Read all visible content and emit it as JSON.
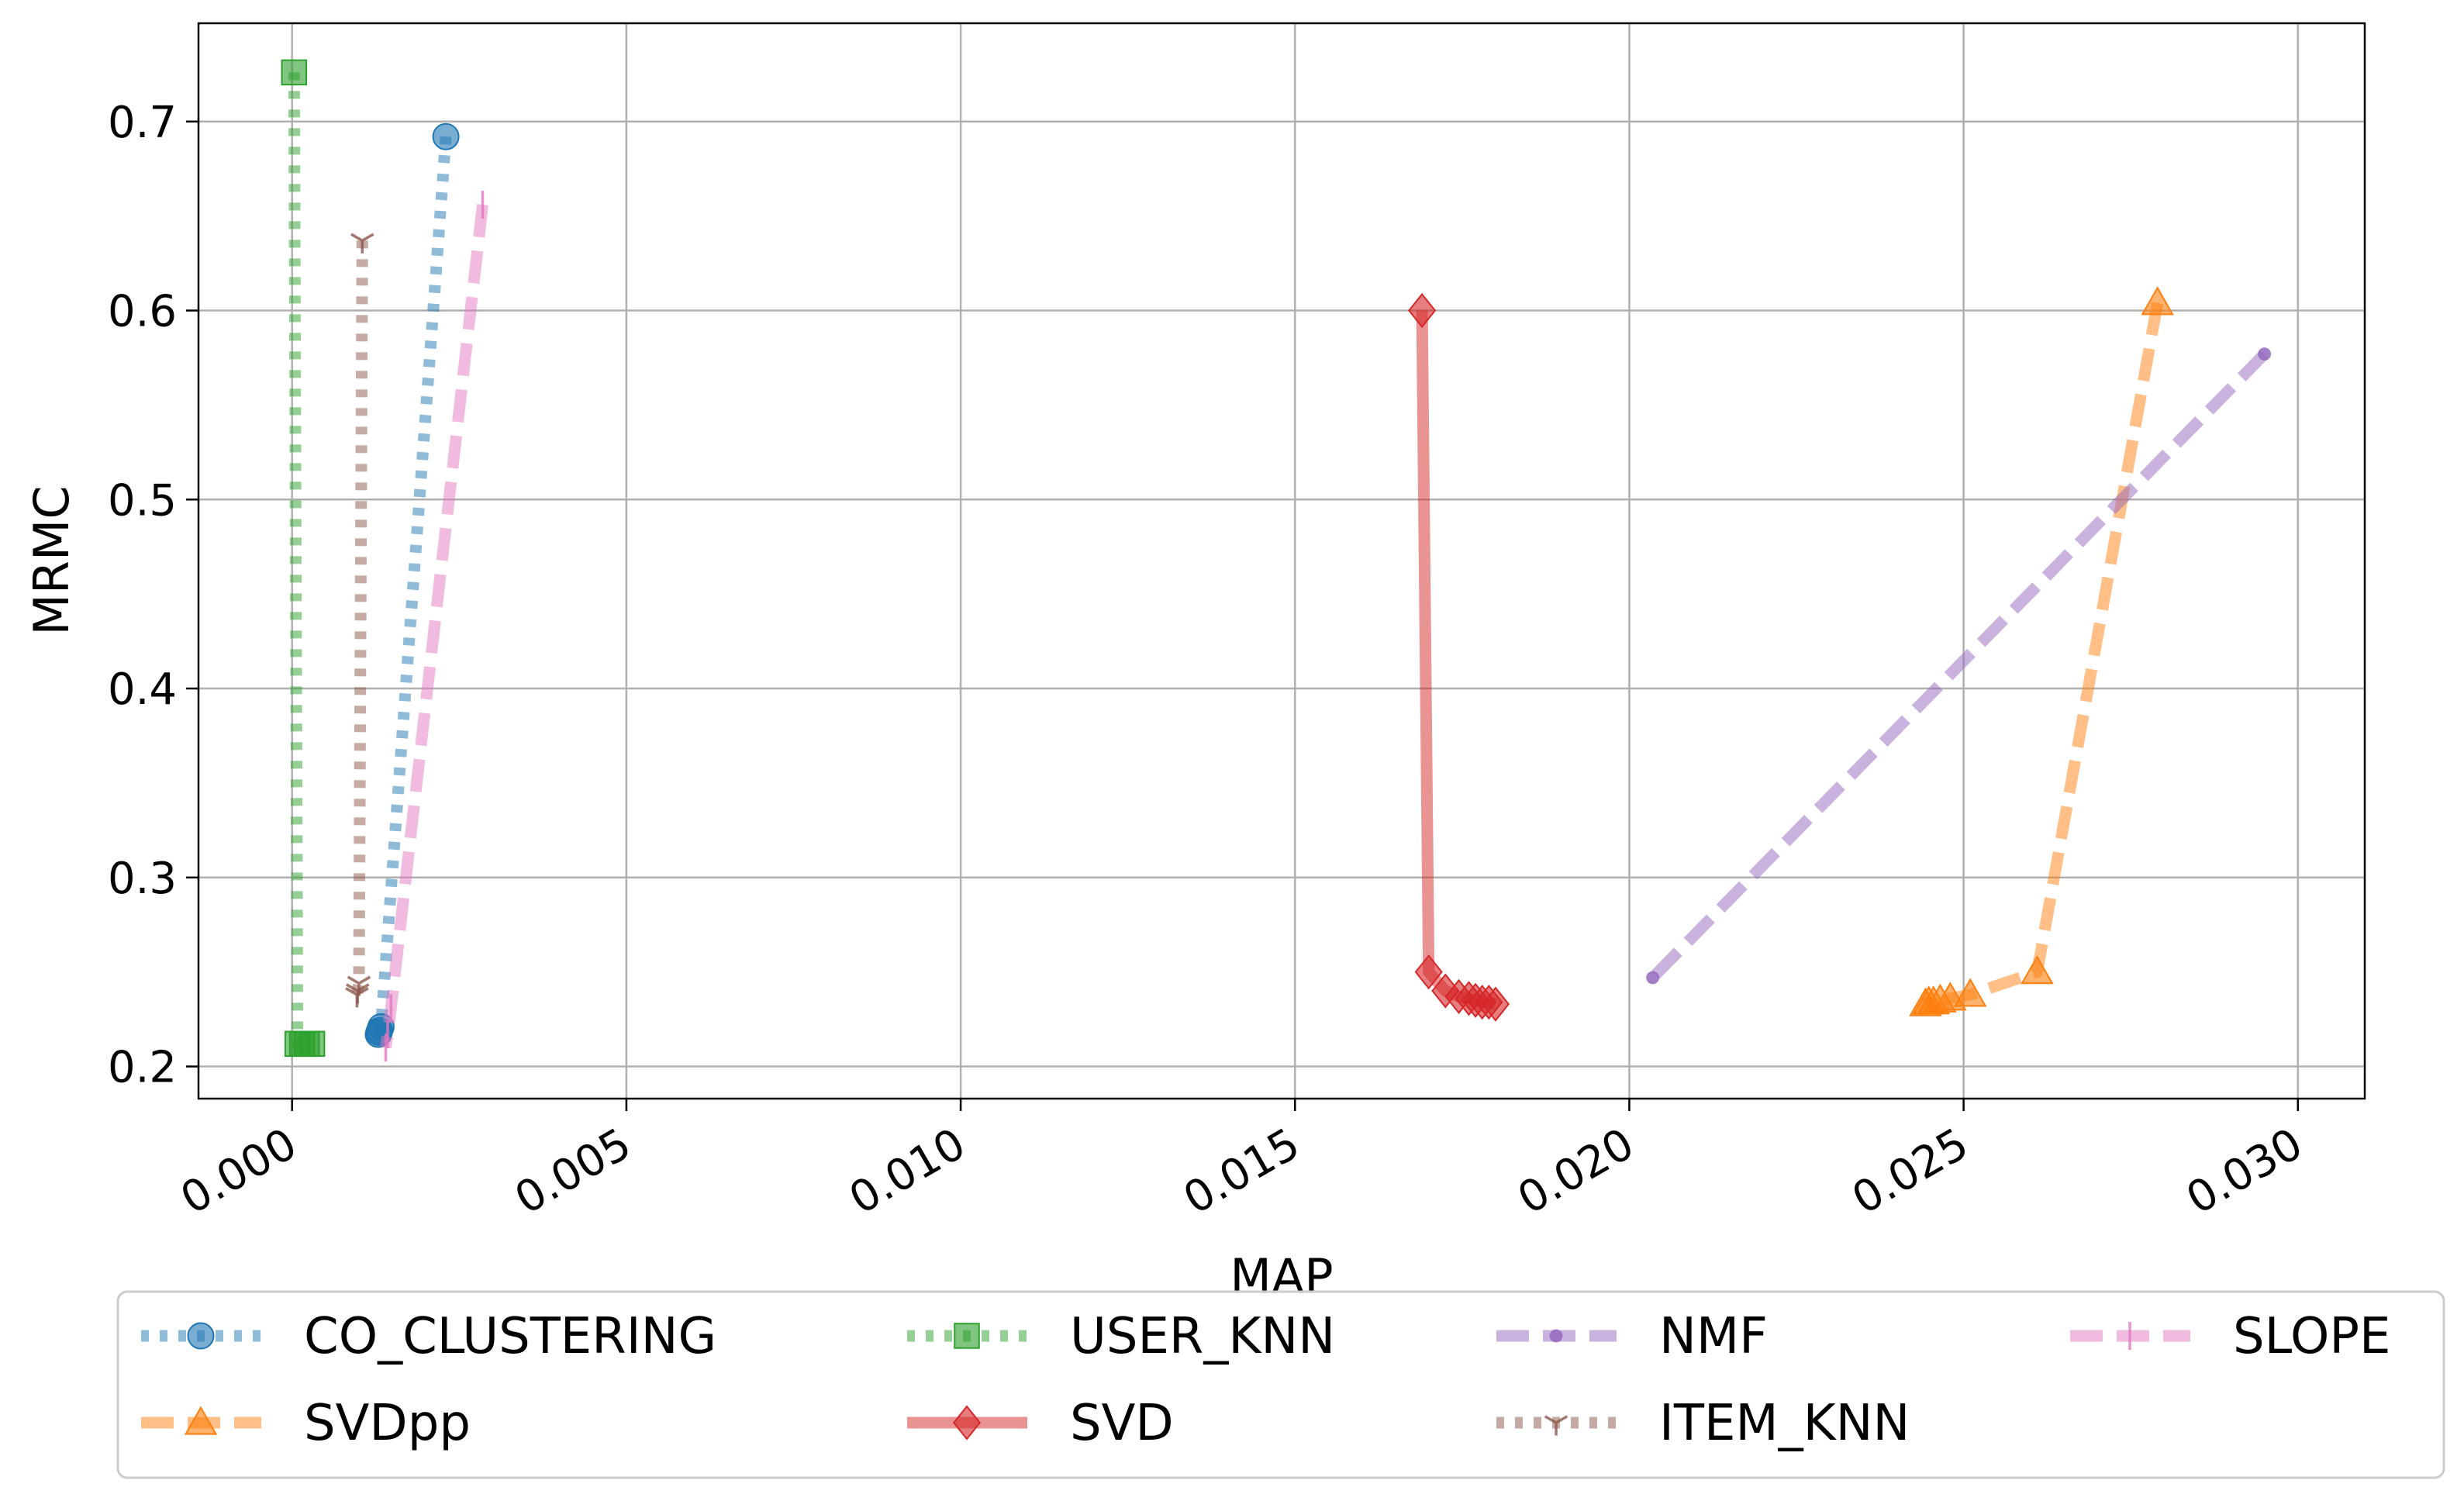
{
  "chart_data": {
    "type": "line",
    "title": "",
    "xlabel": "MAP",
    "ylabel": "MRMC",
    "xlim": [
      -0.0014,
      0.031
    ],
    "ylim": [
      0.183,
      0.752
    ],
    "x_ticks": [
      0.0,
      0.005,
      0.01,
      0.015,
      0.02,
      0.025,
      0.03
    ],
    "x_tick_labels": [
      "0.000",
      "0.005",
      "0.010",
      "0.015",
      "0.020",
      "0.025",
      "0.030"
    ],
    "y_ticks": [
      0.2,
      0.3,
      0.4,
      0.5,
      0.6,
      0.7
    ],
    "y_tick_labels": [
      "0.2",
      "0.3",
      "0.4",
      "0.5",
      "0.6",
      "0.7"
    ],
    "grid": true,
    "legend_position": "below",
    "series": [
      {
        "name": "CO_CLUSTERING",
        "color": "#1f77b4",
        "linestyle": "dotted",
        "marker": "circle",
        "x": [
          0.0023,
          0.00133,
          0.00131,
          0.0013,
          0.00129
        ],
        "y": [
          0.692,
          0.221,
          0.219,
          0.218,
          0.217
        ]
      },
      {
        "name": "SVDpp",
        "color": "#ff7f0e",
        "linestyle": "dashed",
        "marker": "triangle",
        "x": [
          0.0279,
          0.0261,
          0.0251,
          0.0248,
          0.02465,
          0.02455,
          0.02448,
          0.02443
        ],
        "y": [
          0.604,
          0.25,
          0.238,
          0.236,
          0.235,
          0.234,
          0.234,
          0.233
        ]
      },
      {
        "name": "USER_KNN",
        "color": "#2ca02c",
        "linestyle": "dotted",
        "marker": "square",
        "x": [
          3e-05,
          8e-05,
          0.00015,
          0.00022,
          0.0003
        ],
        "y": [
          0.726,
          0.212,
          0.212,
          0.212,
          0.212
        ]
      },
      {
        "name": "SVD",
        "color": "#d62728",
        "linestyle": "solid",
        "marker": "diamond",
        "x": [
          0.0169,
          0.017,
          0.01725,
          0.01745,
          0.0176,
          0.0177,
          0.0178,
          0.0179,
          0.018
        ],
        "y": [
          0.6,
          0.25,
          0.24,
          0.237,
          0.236,
          0.235,
          0.234,
          0.234,
          0.233
        ]
      },
      {
        "name": "NMF",
        "color": "#9467bd",
        "linestyle": "dashed",
        "marker": "point",
        "x": [
          0.0295,
          0.02035
        ],
        "y": [
          0.577,
          0.247
        ]
      },
      {
        "name": "ITEM_KNN",
        "color": "#8c564b",
        "linestyle": "dotted",
        "marker": "tri_down",
        "x": [
          0.00105,
          0.001,
          0.00098,
          0.00097
        ],
        "y": [
          0.637,
          0.244,
          0.24,
          0.238
        ]
      },
      {
        "name": "SLOPE",
        "color": "#e377c2",
        "linestyle": "dashed",
        "marker": "vline",
        "x": [
          0.00285,
          0.00148,
          0.00143,
          0.0014
        ],
        "y": [
          0.656,
          0.231,
          0.217,
          0.21
        ]
      }
    ]
  }
}
